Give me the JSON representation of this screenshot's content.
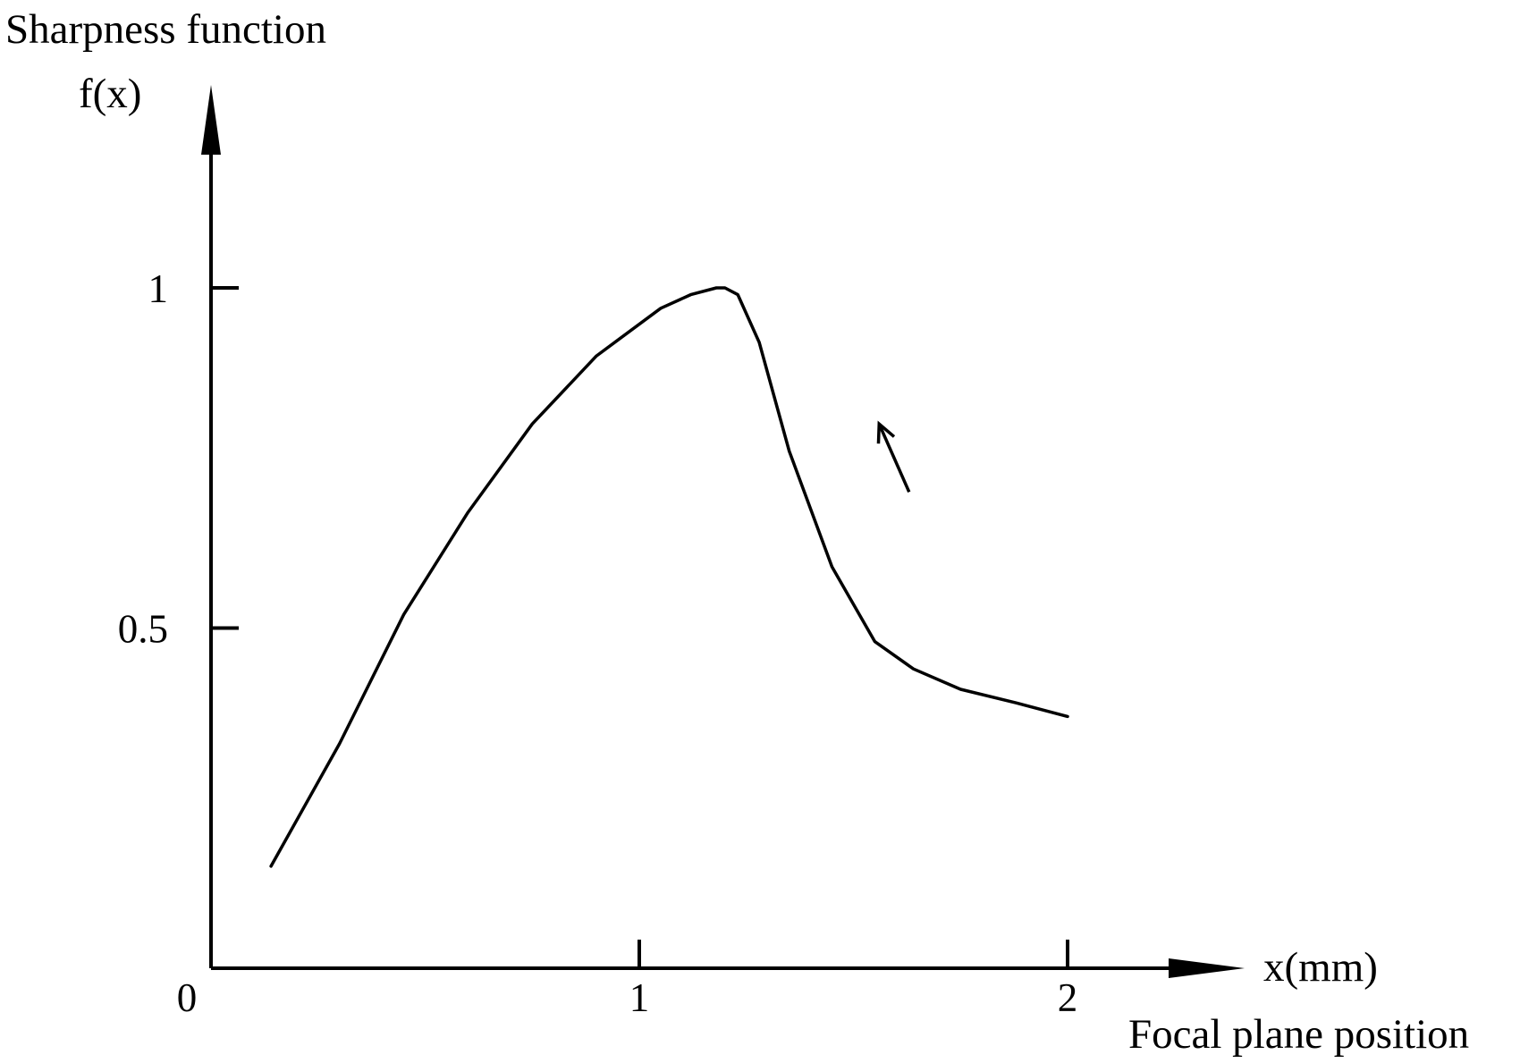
{
  "chart_data": {
    "type": "line",
    "title": "Sharpness function",
    "ylabel": "f(x)",
    "xlabel": "x(mm)",
    "xlabel_caption": "Focal plane position",
    "origin_label": "0",
    "x_ticks": [
      {
        "value": 1,
        "label": "1"
      },
      {
        "value": 2,
        "label": "2"
      }
    ],
    "y_ticks": [
      {
        "value": 0.5,
        "label": "0.5"
      },
      {
        "value": 1,
        "label": "1"
      }
    ],
    "xlim": [
      0,
      2.4
    ],
    "ylim": [
      0,
      1.3
    ],
    "grid": false,
    "legend": "none",
    "series": [
      {
        "x": [
          0.14,
          0.3,
          0.45,
          0.6,
          0.75,
          0.9,
          1.05,
          1.12,
          1.18,
          1.2,
          1.23,
          1.28,
          1.35,
          1.45,
          1.55,
          1.64,
          1.75,
          1.88,
          2.0
        ],
        "y": [
          0.15,
          0.33,
          0.52,
          0.67,
          0.8,
          0.9,
          0.97,
          0.99,
          1.0,
          1.0,
          0.99,
          0.92,
          0.76,
          0.59,
          0.48,
          0.44,
          0.41,
          0.39,
          0.37
        ],
        "color": "#000000"
      }
    ],
    "annotations": [
      {
        "type": "arrow",
        "from": [
          1.63,
          0.7
        ],
        "to": [
          1.56,
          0.8
        ],
        "color": "#000000"
      }
    ]
  }
}
